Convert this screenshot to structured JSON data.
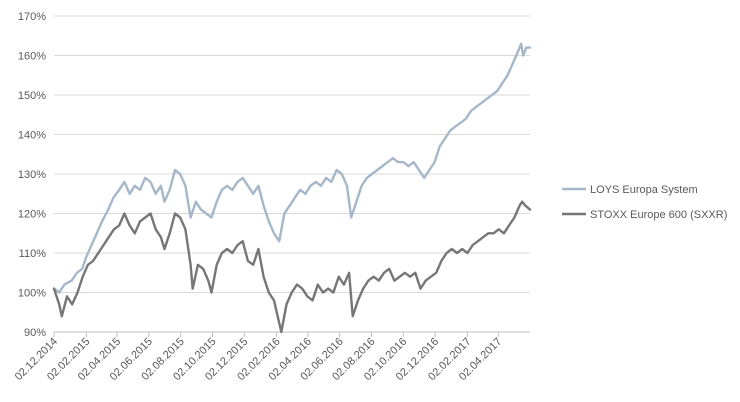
{
  "chart_data": {
    "type": "line",
    "title": "",
    "xlabel": "",
    "ylabel": "",
    "ylim": [
      0.9,
      1.7
    ],
    "y_ticks": [
      {
        "value": 0.9,
        "label": "90%"
      },
      {
        "value": 1.0,
        "label": "100%"
      },
      {
        "value": 1.1,
        "label": "110%"
      },
      {
        "value": 1.2,
        "label": "120%"
      },
      {
        "value": 1.3,
        "label": "130%"
      },
      {
        "value": 1.4,
        "label": "140%"
      },
      {
        "value": 1.5,
        "label": "150%"
      },
      {
        "value": 1.6,
        "label": "160%"
      },
      {
        "value": 1.7,
        "label": "170%"
      }
    ],
    "x_range": [
      "2014-12-02",
      "2017-06-02"
    ],
    "x_ticks": [
      {
        "date": "2014-12-02",
        "label": "02.12.2014"
      },
      {
        "date": "2015-02-02",
        "label": "02.02.2015"
      },
      {
        "date": "2015-04-02",
        "label": "02.04.2015"
      },
      {
        "date": "2015-06-02",
        "label": "02.06.2015"
      },
      {
        "date": "2015-08-02",
        "label": "02.08.2015"
      },
      {
        "date": "2015-10-02",
        "label": "02.10.2015"
      },
      {
        "date": "2015-12-02",
        "label": "02.12.2015"
      },
      {
        "date": "2016-02-02",
        "label": "02.02.2016"
      },
      {
        "date": "2016-04-02",
        "label": "02.04.2016"
      },
      {
        "date": "2016-06-02",
        "label": "02.06.2016"
      },
      {
        "date": "2016-08-02",
        "label": "02.08.2016"
      },
      {
        "date": "2016-10-02",
        "label": "02.10.2016"
      },
      {
        "date": "2016-12-02",
        "label": "02.12.2016"
      },
      {
        "date": "2017-02-02",
        "label": "02.02.2017"
      },
      {
        "date": "2017-04-02",
        "label": "02.04.2017"
      }
    ],
    "grid": true,
    "legend_position": "right",
    "series": [
      {
        "name": "LOYS Europa System",
        "color": "#a5b7c9",
        "points": [
          [
            "2014-12-02",
            1.01
          ],
          [
            "2014-12-12",
            1.0
          ],
          [
            "2014-12-22",
            1.02
          ],
          [
            "2015-01-05",
            1.03
          ],
          [
            "2015-01-15",
            1.05
          ],
          [
            "2015-01-25",
            1.06
          ],
          [
            "2015-02-02",
            1.09
          ],
          [
            "2015-02-12",
            1.12
          ],
          [
            "2015-02-22",
            1.15
          ],
          [
            "2015-03-04",
            1.18
          ],
          [
            "2015-03-16",
            1.21
          ],
          [
            "2015-03-26",
            1.24
          ],
          [
            "2015-04-06",
            1.26
          ],
          [
            "2015-04-16",
            1.28
          ],
          [
            "2015-04-26",
            1.25
          ],
          [
            "2015-05-06",
            1.27
          ],
          [
            "2015-05-16",
            1.26
          ],
          [
            "2015-05-26",
            1.29
          ],
          [
            "2015-06-05",
            1.28
          ],
          [
            "2015-06-15",
            1.25
          ],
          [
            "2015-06-25",
            1.27
          ],
          [
            "2015-07-02",
            1.23
          ],
          [
            "2015-07-12",
            1.26
          ],
          [
            "2015-07-22",
            1.31
          ],
          [
            "2015-08-01",
            1.3
          ],
          [
            "2015-08-11",
            1.27
          ],
          [
            "2015-08-21",
            1.19
          ],
          [
            "2015-08-31",
            1.23
          ],
          [
            "2015-09-10",
            1.21
          ],
          [
            "2015-09-20",
            1.2
          ],
          [
            "2015-09-30",
            1.19
          ],
          [
            "2015-10-10",
            1.23
          ],
          [
            "2015-10-20",
            1.26
          ],
          [
            "2015-10-30",
            1.27
          ],
          [
            "2015-11-09",
            1.26
          ],
          [
            "2015-11-19",
            1.28
          ],
          [
            "2015-11-29",
            1.29
          ],
          [
            "2015-12-09",
            1.27
          ],
          [
            "2015-12-19",
            1.25
          ],
          [
            "2015-12-29",
            1.27
          ],
          [
            "2016-01-08",
            1.22
          ],
          [
            "2016-01-18",
            1.18
          ],
          [
            "2016-01-28",
            1.15
          ],
          [
            "2016-02-07",
            1.13
          ],
          [
            "2016-02-17",
            1.2
          ],
          [
            "2016-02-27",
            1.22
          ],
          [
            "2016-03-08",
            1.24
          ],
          [
            "2016-03-18",
            1.26
          ],
          [
            "2016-03-28",
            1.25
          ],
          [
            "2016-04-07",
            1.27
          ],
          [
            "2016-04-17",
            1.28
          ],
          [
            "2016-04-27",
            1.27
          ],
          [
            "2016-05-07",
            1.29
          ],
          [
            "2016-05-17",
            1.28
          ],
          [
            "2016-05-27",
            1.31
          ],
          [
            "2016-06-06",
            1.3
          ],
          [
            "2016-06-16",
            1.27
          ],
          [
            "2016-06-24",
            1.19
          ],
          [
            "2016-07-04",
            1.23
          ],
          [
            "2016-07-14",
            1.27
          ],
          [
            "2016-07-24",
            1.29
          ],
          [
            "2016-08-03",
            1.3
          ],
          [
            "2016-08-13",
            1.31
          ],
          [
            "2016-08-23",
            1.32
          ],
          [
            "2016-09-02",
            1.33
          ],
          [
            "2016-09-12",
            1.34
          ],
          [
            "2016-09-22",
            1.33
          ],
          [
            "2016-10-02",
            1.33
          ],
          [
            "2016-10-12",
            1.32
          ],
          [
            "2016-10-22",
            1.33
          ],
          [
            "2016-11-01",
            1.31
          ],
          [
            "2016-11-11",
            1.29
          ],
          [
            "2016-11-21",
            1.31
          ],
          [
            "2016-12-01",
            1.33
          ],
          [
            "2016-12-11",
            1.37
          ],
          [
            "2016-12-21",
            1.39
          ],
          [
            "2016-12-31",
            1.41
          ],
          [
            "2017-01-10",
            1.42
          ],
          [
            "2017-01-20",
            1.43
          ],
          [
            "2017-01-30",
            1.44
          ],
          [
            "2017-02-09",
            1.46
          ],
          [
            "2017-02-19",
            1.47
          ],
          [
            "2017-03-01",
            1.48
          ],
          [
            "2017-03-11",
            1.49
          ],
          [
            "2017-03-21",
            1.5
          ],
          [
            "2017-03-31",
            1.51
          ],
          [
            "2017-04-10",
            1.53
          ],
          [
            "2017-04-20",
            1.55
          ],
          [
            "2017-04-30",
            1.58
          ],
          [
            "2017-05-10",
            1.61
          ],
          [
            "2017-05-16",
            1.63
          ],
          [
            "2017-05-20",
            1.6
          ],
          [
            "2017-05-26",
            1.62
          ],
          [
            "2017-06-02",
            1.62
          ]
        ]
      },
      {
        "name": "STOXX Europe 600 (SXXR)",
        "color": "#767676",
        "points": [
          [
            "2014-12-02",
            1.01
          ],
          [
            "2014-12-12",
            0.97
          ],
          [
            "2014-12-17",
            0.94
          ],
          [
            "2014-12-27",
            0.99
          ],
          [
            "2015-01-06",
            0.97
          ],
          [
            "2015-01-16",
            1.0
          ],
          [
            "2015-01-26",
            1.04
          ],
          [
            "2015-02-05",
            1.07
          ],
          [
            "2015-02-15",
            1.08
          ],
          [
            "2015-02-25",
            1.1
          ],
          [
            "2015-03-07",
            1.12
          ],
          [
            "2015-03-17",
            1.14
          ],
          [
            "2015-03-27",
            1.16
          ],
          [
            "2015-04-06",
            1.17
          ],
          [
            "2015-04-16",
            1.2
          ],
          [
            "2015-04-26",
            1.17
          ],
          [
            "2015-05-06",
            1.15
          ],
          [
            "2015-05-16",
            1.18
          ],
          [
            "2015-05-26",
            1.19
          ],
          [
            "2015-06-05",
            1.2
          ],
          [
            "2015-06-15",
            1.16
          ],
          [
            "2015-06-25",
            1.14
          ],
          [
            "2015-07-02",
            1.11
          ],
          [
            "2015-07-12",
            1.15
          ],
          [
            "2015-07-22",
            1.2
          ],
          [
            "2015-08-01",
            1.19
          ],
          [
            "2015-08-11",
            1.16
          ],
          [
            "2015-08-21",
            1.07
          ],
          [
            "2015-08-25",
            1.01
          ],
          [
            "2015-09-04",
            1.07
          ],
          [
            "2015-09-14",
            1.06
          ],
          [
            "2015-09-24",
            1.03
          ],
          [
            "2015-09-30",
            1.0
          ],
          [
            "2015-10-10",
            1.07
          ],
          [
            "2015-10-20",
            1.1
          ],
          [
            "2015-10-30",
            1.11
          ],
          [
            "2015-11-09",
            1.1
          ],
          [
            "2015-11-19",
            1.12
          ],
          [
            "2015-11-29",
            1.13
          ],
          [
            "2015-12-09",
            1.08
          ],
          [
            "2015-12-19",
            1.07
          ],
          [
            "2015-12-29",
            1.11
          ],
          [
            "2016-01-08",
            1.04
          ],
          [
            "2016-01-18",
            1.0
          ],
          [
            "2016-01-28",
            0.98
          ],
          [
            "2016-02-11",
            0.9
          ],
          [
            "2016-02-21",
            0.97
          ],
          [
            "2016-03-02",
            1.0
          ],
          [
            "2016-03-12",
            1.02
          ],
          [
            "2016-03-22",
            1.01
          ],
          [
            "2016-04-01",
            0.99
          ],
          [
            "2016-04-11",
            0.98
          ],
          [
            "2016-04-21",
            1.02
          ],
          [
            "2016-05-01",
            1.0
          ],
          [
            "2016-05-11",
            1.01
          ],
          [
            "2016-05-21",
            1.0
          ],
          [
            "2016-05-31",
            1.04
          ],
          [
            "2016-06-10",
            1.02
          ],
          [
            "2016-06-20",
            1.05
          ],
          [
            "2016-06-27",
            0.94
          ],
          [
            "2016-07-07",
            0.98
          ],
          [
            "2016-07-17",
            1.01
          ],
          [
            "2016-07-27",
            1.03
          ],
          [
            "2016-08-06",
            1.04
          ],
          [
            "2016-08-16",
            1.03
          ],
          [
            "2016-08-26",
            1.05
          ],
          [
            "2016-09-05",
            1.06
          ],
          [
            "2016-09-15",
            1.03
          ],
          [
            "2016-09-25",
            1.04
          ],
          [
            "2016-10-05",
            1.05
          ],
          [
            "2016-10-15",
            1.04
          ],
          [
            "2016-10-25",
            1.05
          ],
          [
            "2016-11-04",
            1.01
          ],
          [
            "2016-11-14",
            1.03
          ],
          [
            "2016-11-24",
            1.04
          ],
          [
            "2016-12-04",
            1.05
          ],
          [
            "2016-12-14",
            1.08
          ],
          [
            "2016-12-24",
            1.1
          ],
          [
            "2017-01-03",
            1.11
          ],
          [
            "2017-01-13",
            1.1
          ],
          [
            "2017-01-23",
            1.11
          ],
          [
            "2017-02-02",
            1.1
          ],
          [
            "2017-02-12",
            1.12
          ],
          [
            "2017-02-22",
            1.13
          ],
          [
            "2017-03-04",
            1.14
          ],
          [
            "2017-03-14",
            1.15
          ],
          [
            "2017-03-24",
            1.15
          ],
          [
            "2017-04-03",
            1.16
          ],
          [
            "2017-04-13",
            1.15
          ],
          [
            "2017-04-23",
            1.17
          ],
          [
            "2017-05-03",
            1.19
          ],
          [
            "2017-05-13",
            1.22
          ],
          [
            "2017-05-18",
            1.23
          ],
          [
            "2017-05-24",
            1.22
          ],
          [
            "2017-06-02",
            1.21
          ]
        ]
      }
    ]
  }
}
